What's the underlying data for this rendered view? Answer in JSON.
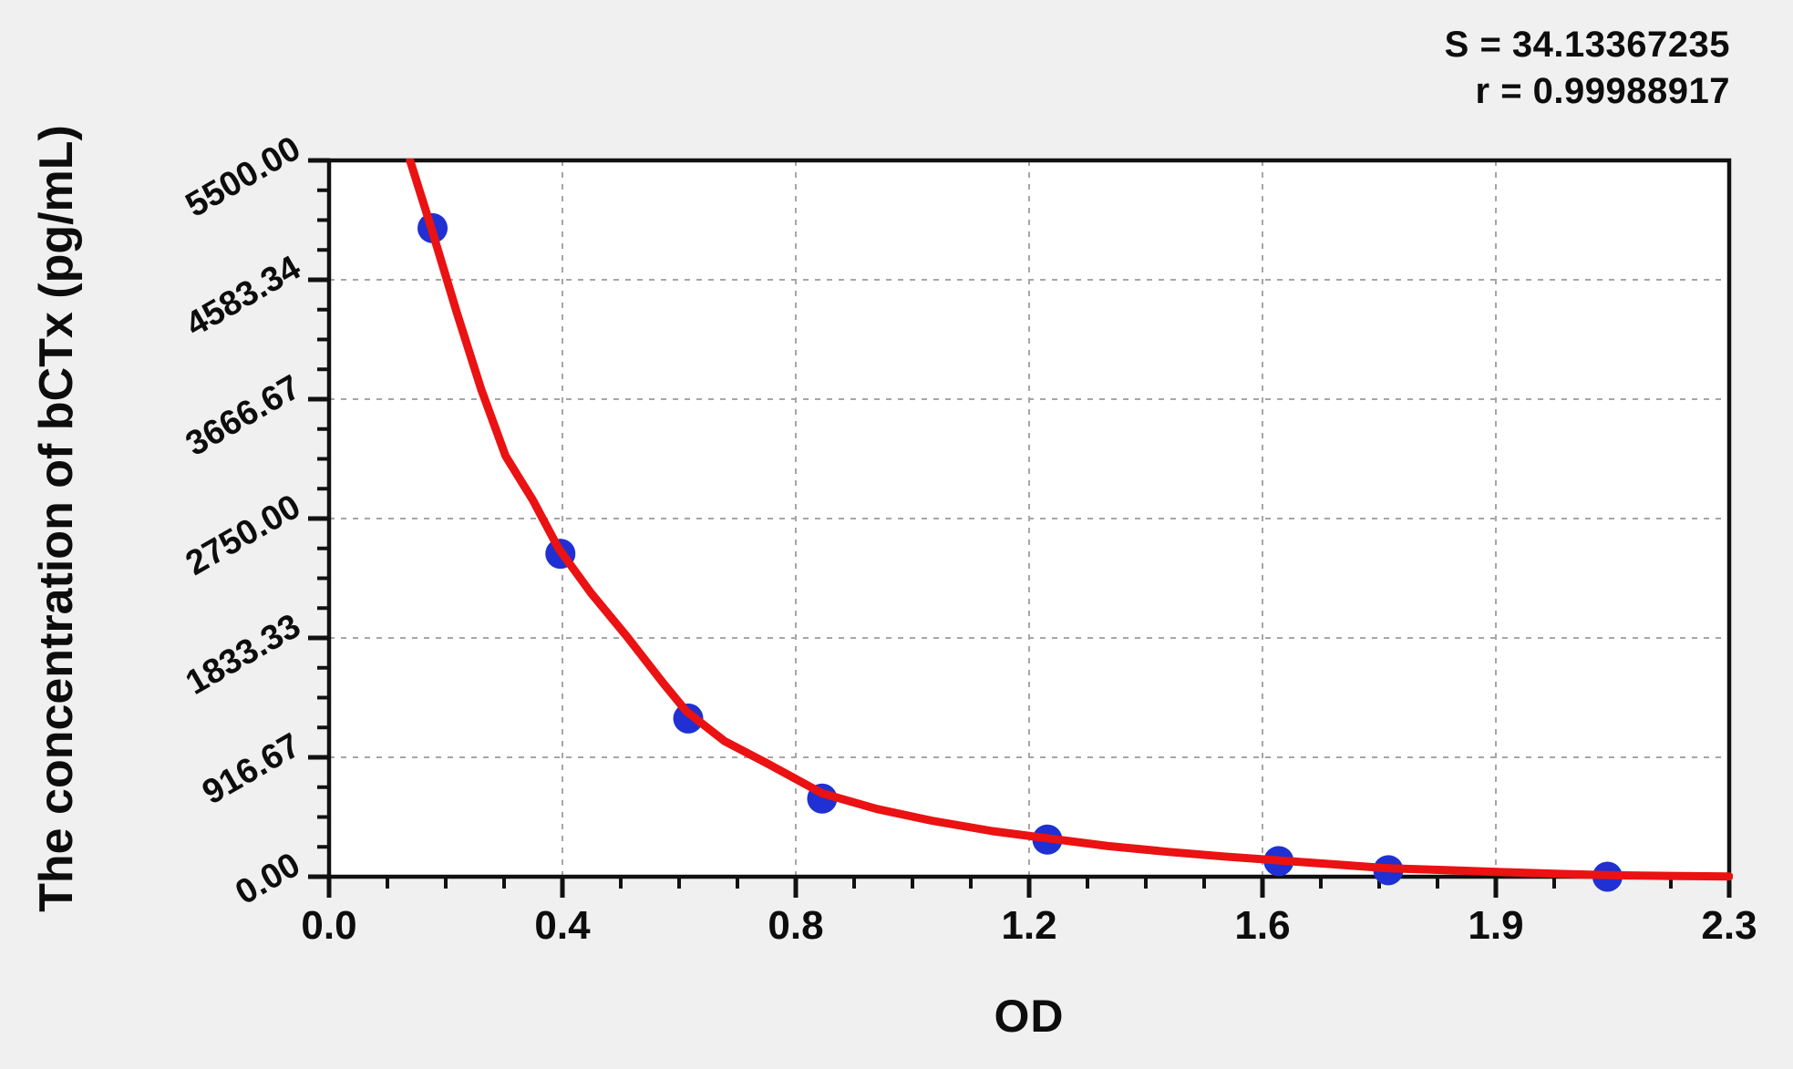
{
  "figure": {
    "background": "#f0f0f0",
    "plot_background": "#ffffff",
    "text_color": "#0d0d0d"
  },
  "stats": {
    "s_line": "S = 34.13367235",
    "r_line": "r = 0.99988917"
  },
  "axes": {
    "x_title": "OD",
    "y_title": "The concentration of bCTx (pg/mL)",
    "x_tick_labels": [
      "0.0",
      "0.4",
      "0.8",
      "1.2",
      "1.6",
      "1.9",
      "2.3"
    ],
    "y_tick_labels": [
      "5500.00",
      "4583.34",
      "3666.67",
      "2750.00",
      "1833.33",
      "916.67",
      "0.00"
    ],
    "axis_color": "#111111",
    "gridline_color": "#a6a6a6"
  },
  "chart_data": {
    "type": "scatter",
    "title": "",
    "xlabel": "OD",
    "ylabel": "The concentration of bCTx (pg/mL)",
    "xlim": [
      0,
      2.3
    ],
    "ylim": [
      0,
      5500
    ],
    "x_tick_values": [
      0,
      0.3833,
      0.7667,
      1.15,
      1.5333,
      1.9167,
      2.3
    ],
    "y_tick_values": [
      5500,
      4583.34,
      3666.67,
      2750,
      1833.33,
      916.67,
      0
    ],
    "x_minor_divisions_per_major": 4,
    "y_minor_divisions_per_major": 4,
    "grid": "dotted gridlines at major ticks, both axes",
    "legend_position": "none",
    "S": 34.13367235,
    "r": 0.99988917,
    "point_color": "#2030d2",
    "curve_color": "#ea1212",
    "points": [
      {
        "od": 0.17,
        "conc": 4980
      },
      {
        "od": 0.38,
        "conc": 2480
      },
      {
        "od": 0.59,
        "conc": 1215
      },
      {
        "od": 0.81,
        "conc": 600
      },
      {
        "od": 1.18,
        "conc": 285
      },
      {
        "od": 1.56,
        "conc": 120
      },
      {
        "od": 1.74,
        "conc": 50
      },
      {
        "od": 2.1,
        "conc": 0
      }
    ],
    "fit_curve_points": [
      [
        0.133,
        5500
      ],
      [
        0.168,
        4980
      ],
      [
        0.21,
        4330
      ],
      [
        0.25,
        3740
      ],
      [
        0.29,
        3230
      ],
      [
        0.335,
        2890
      ],
      [
        0.377,
        2520
      ],
      [
        0.43,
        2180
      ],
      [
        0.49,
        1840
      ],
      [
        0.55,
        1480
      ],
      [
        0.587,
        1270
      ],
      [
        0.65,
        1040
      ],
      [
        0.72,
        870
      ],
      [
        0.81,
        640
      ],
      [
        0.9,
        520
      ],
      [
        0.99,
        430
      ],
      [
        1.09,
        350
      ],
      [
        1.18,
        295
      ],
      [
        1.28,
        235
      ],
      [
        1.38,
        190
      ],
      [
        1.47,
        155
      ],
      [
        1.56,
        125
      ],
      [
        1.65,
        95
      ],
      [
        1.74,
        65
      ],
      [
        1.84,
        50
      ],
      [
        1.93,
        35
      ],
      [
        2.02,
        22
      ],
      [
        2.1,
        12
      ],
      [
        2.2,
        6
      ],
      [
        2.3,
        2
      ]
    ]
  }
}
